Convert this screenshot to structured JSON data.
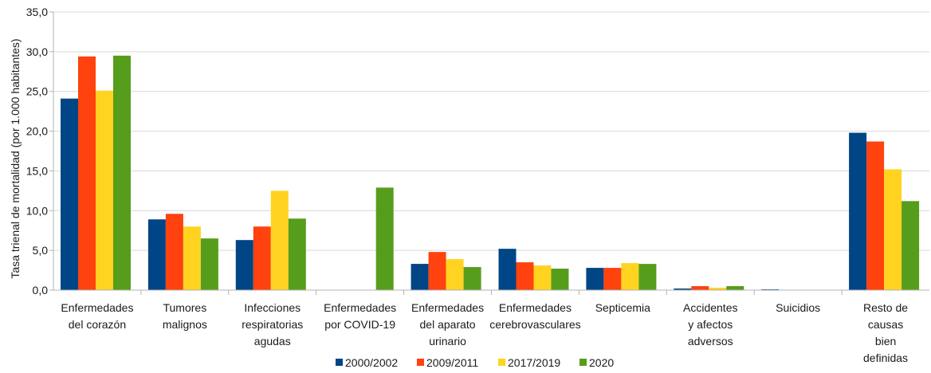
{
  "chart_data": {
    "type": "bar",
    "title": "",
    "xlabel": "",
    "ylabel": "Tasa trienal de mortalidad (por 1.000 habitantes)",
    "ylim": [
      0,
      35
    ],
    "yticks": [
      "0,0",
      "5,0",
      "10,0",
      "15,0",
      "20,0",
      "25,0",
      "30,0",
      "35,0"
    ],
    "grid": true,
    "legend_position": "bottom",
    "categories": [
      [
        "Enfermedades",
        "del corazón"
      ],
      [
        "Tumores",
        "malignos"
      ],
      [
        "Infecciones",
        "respiratorias",
        "agudas"
      ],
      [
        "Enfermedades",
        "por COVID-19"
      ],
      [
        "Enfermedades",
        "del aparato",
        "urinario"
      ],
      [
        "Enfermedades",
        "cerebrovasculares"
      ],
      [
        "Septicemia"
      ],
      [
        "Accidentes",
        "y afectos",
        "adversos"
      ],
      [
        "Suicidios"
      ],
      [
        "Resto de",
        "causas",
        "bien",
        "definidas"
      ]
    ],
    "series": [
      {
        "name": "2000/2002",
        "color": "#004586",
        "values": [
          24.1,
          8.9,
          6.3,
          0,
          3.3,
          5.2,
          2.8,
          0.2,
          0.1,
          19.8
        ]
      },
      {
        "name": "2009/2011",
        "color": "#ff420e",
        "values": [
          29.4,
          9.6,
          8.0,
          0,
          4.8,
          3.5,
          2.8,
          0.5,
          0,
          18.7
        ]
      },
      {
        "name": "2017/2019",
        "color": "#ffd320",
        "values": [
          25.1,
          8.0,
          12.5,
          0,
          3.9,
          3.1,
          3.4,
          0.3,
          0,
          15.2
        ]
      },
      {
        "name": "2020",
        "color": "#579d1c",
        "values": [
          29.5,
          6.5,
          9.0,
          12.9,
          2.9,
          2.7,
          3.3,
          0.5,
          0,
          11.2
        ]
      }
    ]
  }
}
